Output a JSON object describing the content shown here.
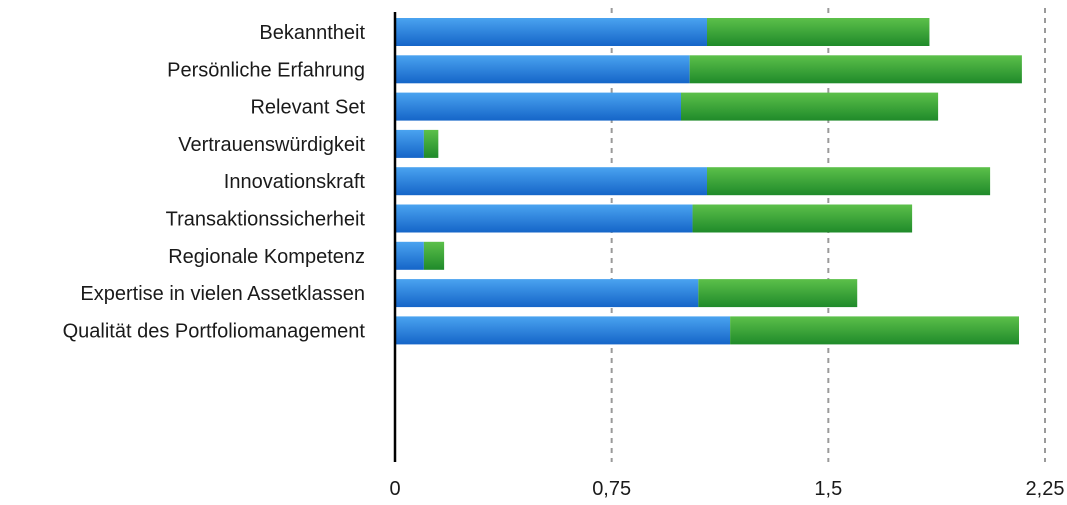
{
  "chart_data": {
    "type": "bar",
    "orientation": "horizontal",
    "stacked": true,
    "categories": [
      "Bekanntheit",
      "Persönliche Erfahrung ",
      "Relevant Set",
      "Vertrauenswürdigkeit",
      "Innovationskraft",
      "Transaktionssicherheit",
      "Regionale Kompetenz",
      "Expertise in vielen Assetklassen",
      "Qualität des Portfoliomanagement"
    ],
    "series": [
      {
        "color": "#1f77d6",
        "values": [
          1.08,
          1.02,
          0.99,
          0.1,
          1.08,
          1.03,
          0.1,
          1.05,
          1.16
        ]
      },
      {
        "color": "#2e9e35",
        "values": [
          0.77,
          1.15,
          0.89,
          0.05,
          0.98,
          0.76,
          0.07,
          0.55,
          1.0
        ]
      }
    ],
    "xlim": [
      0,
      2.25
    ],
    "xticks": [
      "0",
      "0,75",
      "1,5",
      "2,25"
    ],
    "xtick_values": [
      0,
      0.75,
      1.5,
      2.25
    ],
    "grid": "vertical-dashed",
    "legend": "none"
  }
}
